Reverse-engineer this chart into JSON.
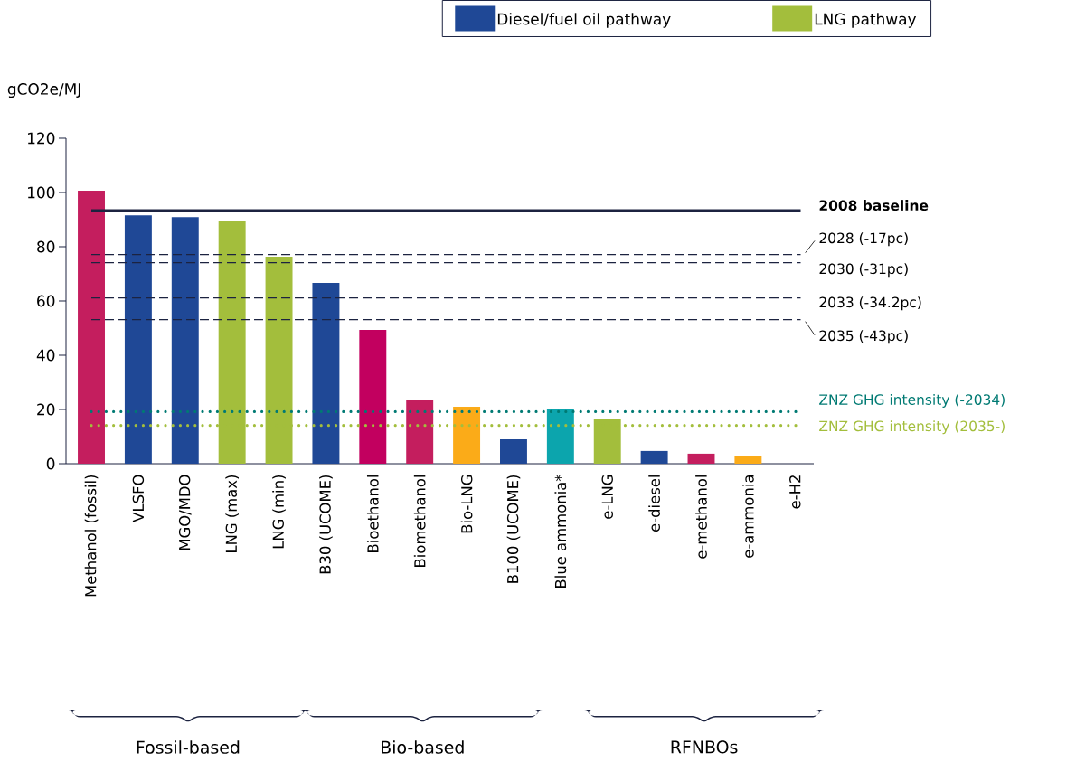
{
  "chart_data": {
    "type": "bar",
    "ylabel": "gCO2e/MJ",
    "categories": [
      "Methanol (fossil)",
      "VLSFO",
      "MGO/MDO",
      "LNG (max)",
      "LNG (min)",
      "B30 (UCOME)",
      "Bioethanol",
      "Biomethanol",
      "Bio-LNG",
      "B100 (UCOME)",
      "Blue ammonia*",
      "e-LNG",
      "e-diesel",
      "e-methanol",
      "e-ammonia",
      "e-H2"
    ],
    "series": [
      {
        "name": "Diesel/fuel oil pathway",
        "color": "#1f4896",
        "values": [
          null,
          91.6,
          90.9,
          null,
          null,
          66.7,
          null,
          null,
          null,
          9,
          null,
          null,
          4.7,
          null,
          null,
          null
        ]
      },
      {
        "name": "LNG pathway",
        "color": "#a3be3c",
        "values": [
          null,
          null,
          null,
          89.3,
          76.3,
          null,
          null,
          null,
          null,
          null,
          null,
          16.3,
          null,
          null,
          null,
          null
        ]
      },
      {
        "colors": [
          "#c41e5e",
          null,
          null,
          null,
          null,
          null,
          "#c2005f",
          "#c41e5e",
          "#fbab18",
          null,
          "#0ca5ad",
          null,
          null,
          "#c41e5e",
          "#fbab18",
          "#0ca5ad"
        ],
        "values": [
          100.7,
          null,
          null,
          null,
          null,
          null,
          49.3,
          23.7,
          21,
          null,
          20.3,
          null,
          null,
          3.7,
          3,
          0
        ]
      }
    ],
    "ylim": [
      0,
      120
    ],
    "yticks": [
      0,
      20,
      40,
      60,
      80,
      100,
      120
    ],
    "grid": false,
    "legend": "top",
    "ref_lines": [
      {
        "axis": "y",
        "value": 93.3,
        "label": "2008 baseline",
        "color": "#1c2340",
        "line_style": "solid"
      },
      {
        "axis": "y",
        "value": 77.1,
        "label": "2028 (-17pc)",
        "color": "#1c2340",
        "line_style": "dashed"
      },
      {
        "axis": "y",
        "value": 74.1,
        "label": "2030 (-31pc)",
        "color": "#1c2340",
        "line_style": "dashed"
      },
      {
        "axis": "y",
        "value": 61.1,
        "label": "2033 (-34.2pc)",
        "color": "#1c2340",
        "line_style": "dashed"
      },
      {
        "axis": "y",
        "value": 53.1,
        "label": "2035 (-43pc)",
        "color": "#1c2340",
        "line_style": "dashed"
      },
      {
        "axis": "y",
        "value": 19.2,
        "label": "ZNZ GHG intensity (-2034)",
        "color": "#007a73",
        "line_style": "dotted"
      },
      {
        "axis": "y",
        "value": 14.1,
        "label": "ZNZ GHG intensity (2035-)",
        "color": "#a3be3c",
        "line_style": "dotted"
      }
    ],
    "annotations": [
      "Fossil-based",
      "Bio-based",
      "RFNBOs"
    ]
  }
}
